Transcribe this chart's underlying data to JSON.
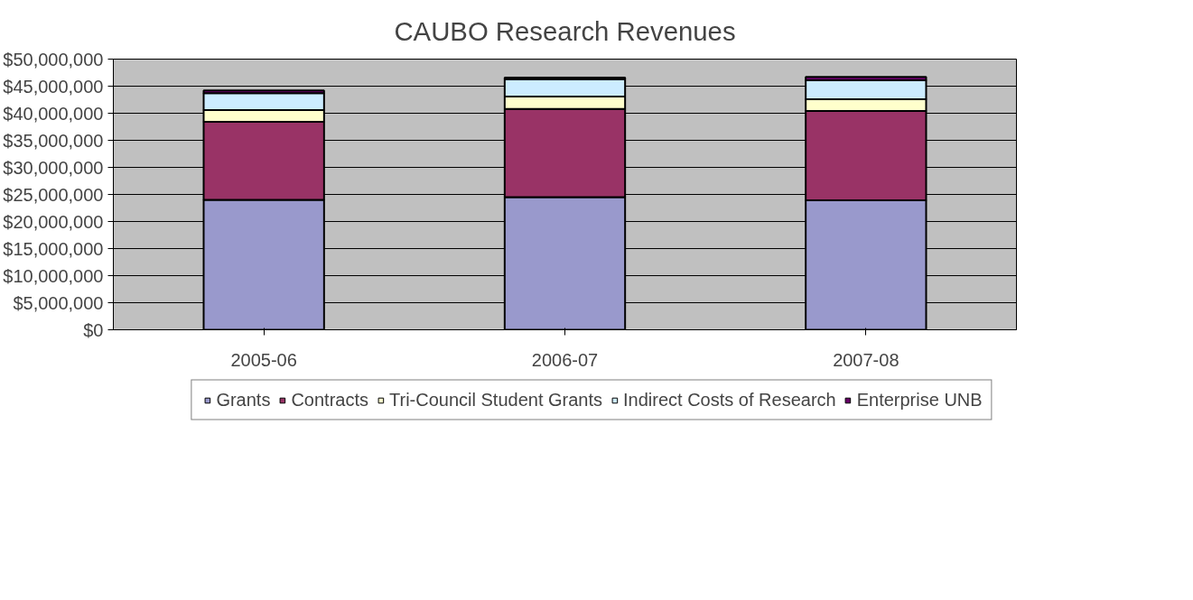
{
  "chart_data": {
    "type": "bar",
    "stacked": true,
    "title": "CAUBO Research Revenues",
    "categories": [
      "2005-06",
      "2006-07",
      "2007-08"
    ],
    "series": [
      {
        "name": "Grants",
        "color": "#9999cc",
        "values": [
          24000000.0,
          24500000.0,
          23900000.0
        ]
      },
      {
        "name": "Contracts",
        "color": "#993366",
        "values": [
          14400000.0,
          16300000.0,
          16500000.0
        ]
      },
      {
        "name": "Tri-Council Student Grants",
        "color": "#ffffcc",
        "values": [
          2200000.0,
          2300000.0,
          2200000.0
        ]
      },
      {
        "name": "Indirect Costs of Research",
        "color": "#ccecff",
        "values": [
          3100000.0,
          3200000.0,
          3500000.0
        ]
      },
      {
        "name": "Enterprise UNB",
        "color": "#660066",
        "values": [
          500000.0,
          300000.0,
          600000.0
        ]
      }
    ],
    "ylim": [
      0,
      50000000
    ],
    "yticks": [
      {
        "value": 0,
        "label": "$0"
      },
      {
        "value": 5000000,
        "label": "$5,000,000"
      },
      {
        "value": 10000000,
        "label": "$10,000,000"
      },
      {
        "value": 15000000,
        "label": "$15,000,000"
      },
      {
        "value": 20000000,
        "label": "$20,000,000"
      },
      {
        "value": 25000000,
        "label": "$25,000,000"
      },
      {
        "value": 30000000,
        "label": "$30,000,000"
      },
      {
        "value": 35000000,
        "label": "$35,000,000"
      },
      {
        "value": 40000000,
        "label": "$40,000,000"
      },
      {
        "value": 45000000,
        "label": "$45,000,000"
      },
      {
        "value": 50000000,
        "label": "$50,000,000"
      }
    ],
    "grid": "y",
    "legend": "bottom"
  }
}
